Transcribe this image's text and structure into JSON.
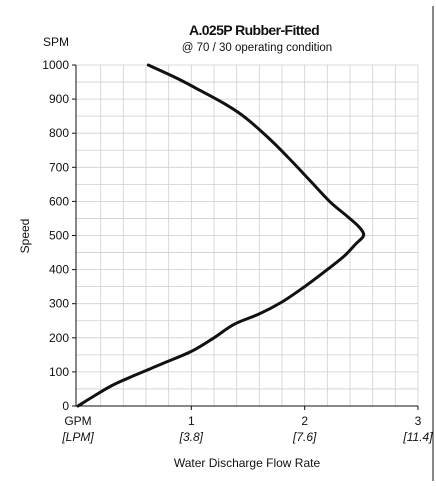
{
  "chart_data": {
    "type": "line",
    "title": "A.025P Rubber-Fitted",
    "subtitle": "@ 70 / 30 operating condition",
    "ylabel": "Speed",
    "y_unit_label": "SPM",
    "xlabel": "Water Discharge Flow Rate",
    "x_unit_label": "GPM",
    "x_alt_unit_label": "[LPM]",
    "xlim": [
      0,
      3
    ],
    "ylim": [
      0,
      1000
    ],
    "x_ticks": [
      {
        "value": 1,
        "label": "1",
        "alt_label": "[3.8]"
      },
      {
        "value": 2,
        "label": "2",
        "alt_label": "[7.6]"
      },
      {
        "value": 3,
        "label": "3",
        "alt_label": "[11.4]"
      }
    ],
    "y_ticks": [
      0,
      100,
      200,
      300,
      400,
      500,
      600,
      700,
      800,
      900,
      1000
    ],
    "grid": true,
    "series": [
      {
        "color": "#111111",
        "points": [
          [
            0.0,
            0
          ],
          [
            0.12,
            25
          ],
          [
            0.3,
            60
          ],
          [
            0.5,
            90
          ],
          [
            0.75,
            125
          ],
          [
            1.0,
            160
          ],
          [
            1.2,
            200
          ],
          [
            1.38,
            240
          ],
          [
            1.6,
            270
          ],
          [
            1.8,
            305
          ],
          [
            2.0,
            350
          ],
          [
            2.2,
            400
          ],
          [
            2.35,
            440
          ],
          [
            2.45,
            475
          ],
          [
            2.52,
            500
          ],
          [
            2.48,
            525
          ],
          [
            2.38,
            555
          ],
          [
            2.22,
            600
          ],
          [
            2.05,
            660
          ],
          [
            1.88,
            720
          ],
          [
            1.7,
            780
          ],
          [
            1.48,
            845
          ],
          [
            1.3,
            885
          ],
          [
            1.08,
            925
          ],
          [
            0.88,
            960
          ],
          [
            0.62,
            1000
          ]
        ]
      }
    ]
  }
}
